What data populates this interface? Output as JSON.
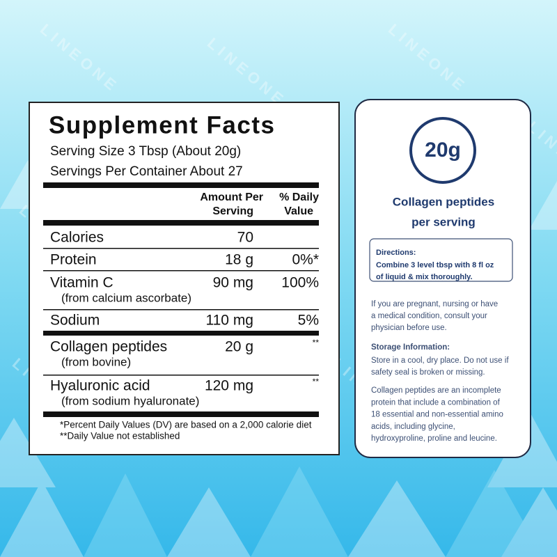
{
  "watermark": "LINEONE",
  "supplement_facts": {
    "title": "Supplement Facts",
    "serving_size": "Serving Size 3 Tbsp (About 20g)",
    "servings_per_container": "Servings Per Container About 27",
    "header": {
      "amount": [
        "Amount Per",
        "Serving"
      ],
      "daily_value": [
        "% Daily",
        "Value"
      ]
    },
    "rows": [
      {
        "name": "Calories",
        "amount": "70"
      },
      {
        "name": "Protein",
        "amount": "18 g",
        "daily_value": "0%*"
      },
      {
        "name": "Vitamin C",
        "sub": "(from calcium ascorbate)",
        "amount": "90 mg",
        "daily_value": "100%"
      },
      {
        "name": "Sodium",
        "amount": "110 mg",
        "daily_value": "5%"
      },
      {
        "name": "Collagen peptides",
        "sub": "(from bovine)",
        "amount": "20 g",
        "daily_value": "**"
      },
      {
        "name": "Hyaluronic acid",
        "sub": "(from sodium hyaluronate)",
        "amount": "120 mg",
        "daily_value": "**"
      }
    ],
    "footnotes": [
      "*Percent Daily Values (DV) are based on a 2,000 calorie diet",
      "**Daily Value not established"
    ]
  },
  "info_card": {
    "badge": "20g",
    "badge_caption": [
      "Collagen peptides",
      "per serving"
    ],
    "directions": {
      "title": "Directions:",
      "lines": [
        "Combine 3 level tbsp with 8 fl oz",
        "of liquid & mix thoroughly."
      ]
    },
    "pregnancy_note": [
      "If you are pregnant, nursing or have",
      "a medical condition, consult your",
      "physician before use."
    ],
    "storage": {
      "title": "Storage Information:",
      "lines": [
        "Store in a cool, dry place. Do not use if",
        "safety seal is broken or missing."
      ]
    },
    "description": [
      "Collagen peptides are an incomplete",
      "protein that include a combination of",
      "18 essential and non-essential amino",
      "acids, including glycine,",
      "hydroxyproline, proline and leucine."
    ]
  }
}
